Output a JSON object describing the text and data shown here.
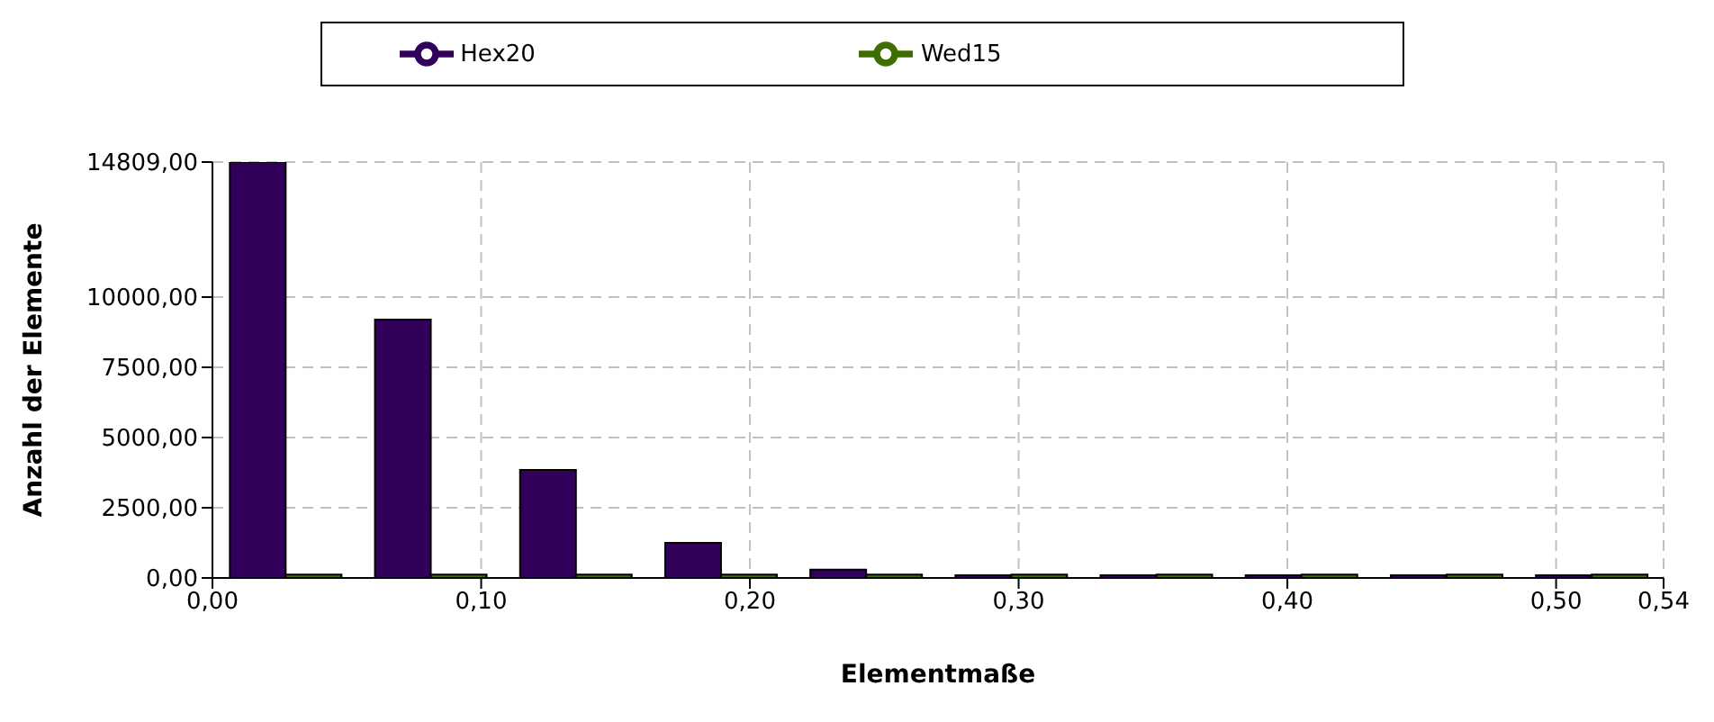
{
  "chart_data": {
    "type": "histogram",
    "xlabel": "Elementmaße",
    "ylabel": "Anzahl der Elemente",
    "bins": [
      0,
      0.054,
      0.108,
      0.162,
      0.216,
      0.27,
      0.324,
      0.378,
      0.432,
      0.486,
      0.54
    ],
    "series": [
      {
        "name": "Hex20",
        "color": "#32005a",
        "values": [
          14809,
          9200,
          3850,
          1250,
          300,
          100,
          100,
          100,
          100,
          100
        ]
      },
      {
        "name": "Wed15",
        "color": "#3c6e00",
        "values": [
          120,
          120,
          120,
          120,
          120,
          120,
          120,
          120,
          120,
          120
        ]
      }
    ],
    "xlim": [
      0,
      0.54
    ],
    "xticks": [
      {
        "value": 0,
        "label": "0,00"
      },
      {
        "value": 0.1,
        "label": "0,10"
      },
      {
        "value": 0.2,
        "label": "0,20"
      },
      {
        "value": 0.3,
        "label": "0,30"
      },
      {
        "value": 0.4,
        "label": "0,40"
      },
      {
        "value": 0.5,
        "label": "0,50"
      },
      {
        "value": 0.54,
        "label": "0,54"
      }
    ],
    "ylim": [
      0,
      14809
    ],
    "yticks": [
      {
        "value": 0,
        "label": "0,00"
      },
      {
        "value": 2500,
        "label": "2500,00"
      },
      {
        "value": 5000,
        "label": "5000,00"
      },
      {
        "value": 7500,
        "label": "7500,00"
      },
      {
        "value": 10000,
        "label": "10000,00"
      },
      {
        "value": 14809,
        "label": "14809,00"
      }
    ],
    "grid": true,
    "legend": "top"
  }
}
